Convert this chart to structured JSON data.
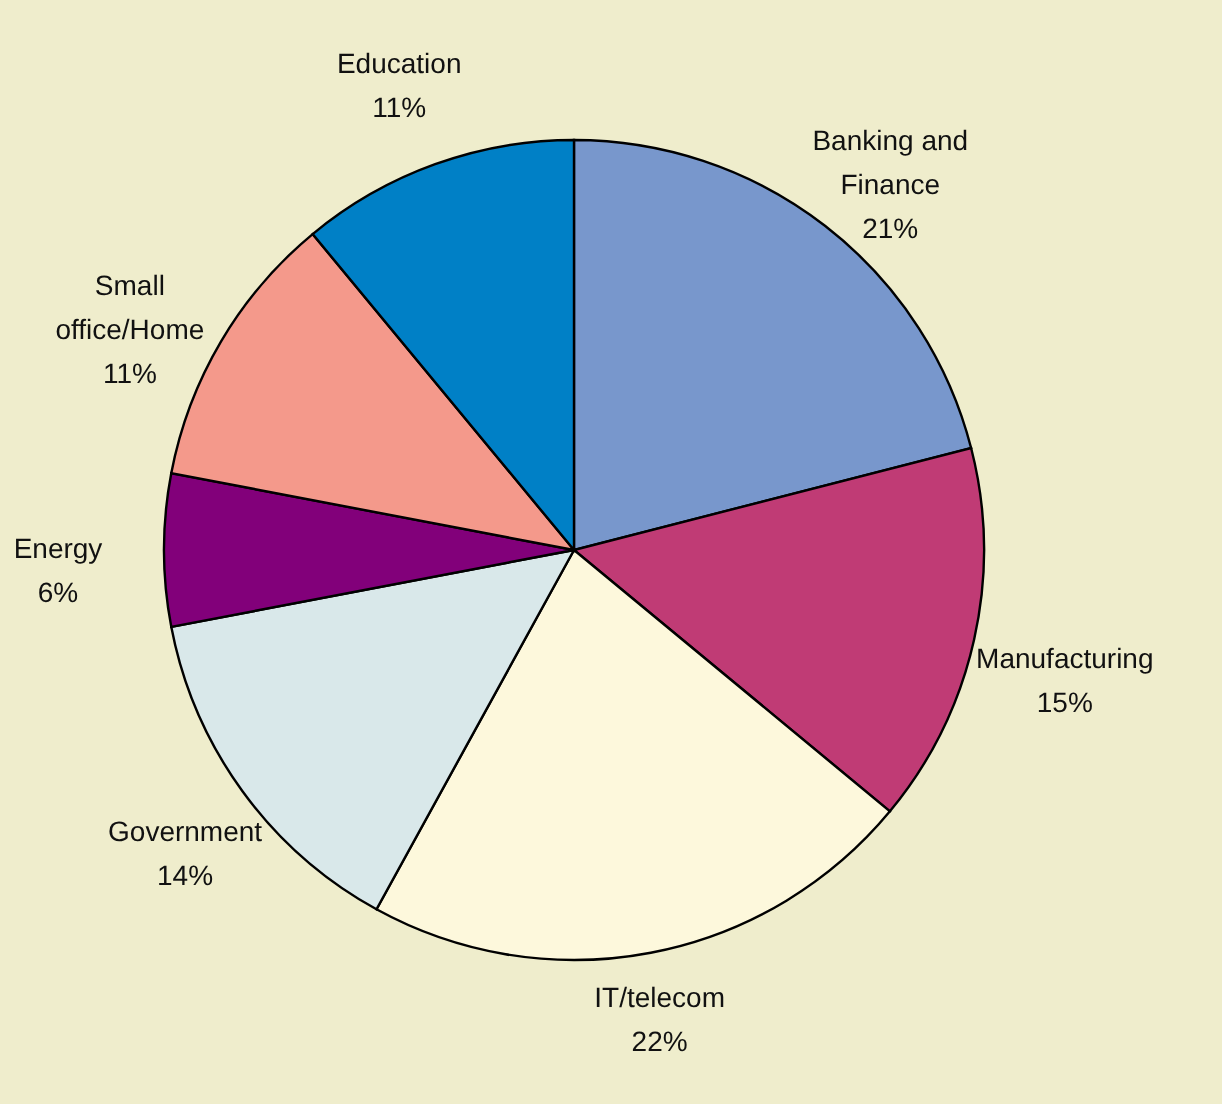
{
  "chart_data": {
    "type": "pie",
    "categories": [
      "Banking and Finance",
      "Manufacturing",
      "IT/telecom",
      "Government",
      "Energy",
      "Small office/Home",
      "Education"
    ],
    "values": [
      21,
      15,
      22,
      14,
      6,
      11,
      11
    ],
    "colors": [
      "#7897cc",
      "#c03b75",
      "#fdf8dc",
      "#d9e8ea",
      "#82007a",
      "#f4998b",
      "#0080c6"
    ],
    "value_labels": [
      "21%",
      "15%",
      "22%",
      "14%",
      "6%",
      "11%",
      "11%"
    ]
  }
}
